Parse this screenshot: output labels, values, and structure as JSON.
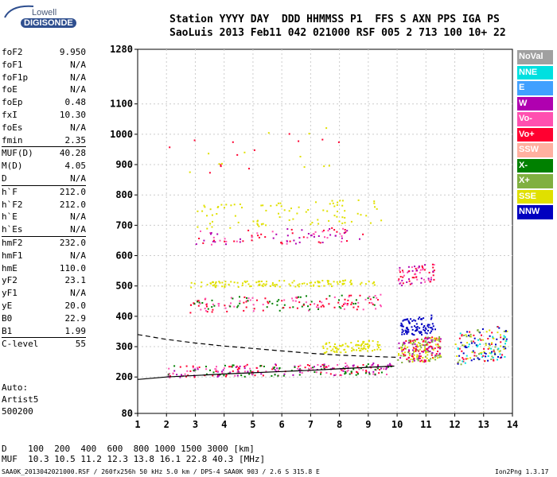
{
  "logo": {
    "line1": "Lowell",
    "line2": "DIGISONDE"
  },
  "header": {
    "line1": "Station YYYY DAY  DDD HHMMSS P1  FFS S AXN PPS IGA PS",
    "line2": "SaoLuis 2013 Feb11 042 021000 RSF 005 2 713 100 10+ 22"
  },
  "params": [
    {
      "label": "foF2",
      "value": "9.950"
    },
    {
      "label": "foF1",
      "value": "N/A"
    },
    {
      "label": "foF1p",
      "value": "N/A"
    },
    {
      "label": "foE",
      "value": "N/A"
    },
    {
      "label": "foEp",
      "value": "0.48"
    },
    {
      "label": "fxI",
      "value": "10.30"
    },
    {
      "label": "foEs",
      "value": "N/A"
    },
    {
      "label": "fmin",
      "value": "2.35"
    },
    {
      "label": "MUF(D)",
      "value": "40.28"
    },
    {
      "label": "M(D)",
      "value": "4.05"
    },
    {
      "label": "D",
      "value": "N/A"
    },
    {
      "label": "h`F",
      "value": "212.0"
    },
    {
      "label": "h`F2",
      "value": "212.0"
    },
    {
      "label": "h`E",
      "value": "N/A"
    },
    {
      "label": "h`Es",
      "value": "N/A"
    },
    {
      "label": "hmF2",
      "value": "232.0"
    },
    {
      "label": "hmF1",
      "value": "N/A"
    },
    {
      "label": "hmE",
      "value": "110.0"
    },
    {
      "label": "yF2",
      "value": "23.1"
    },
    {
      "label": "yF1",
      "value": "N/A"
    },
    {
      "label": "yE",
      "value": "20.0"
    },
    {
      "label": "B0",
      "value": "22.9"
    },
    {
      "label": "B1",
      "value": "1.99"
    },
    {
      "label": "C-level",
      "value": "55"
    }
  ],
  "auto": {
    "line1": "Auto:",
    "line2": "Artist5",
    "line3": "500200"
  },
  "footer": {
    "line1": "D    100  200  400  600  800 1000 1500 3000 [km]",
    "line2": "MUF  10.3 10.5 11.2 12.3 13.8 16.1 22.8 40.3 [MHz]",
    "line3": "SAA0K_2013042021000.RSF / 260fx256h 50 kHz 5.0 km / DPS-4 SAA0K 903 / 2.6 S 315.8 E",
    "version": "Ion2Png 1.3.17"
  },
  "legend": [
    {
      "label": "NoVal",
      "color": "#a0a0a0"
    },
    {
      "label": "NNE",
      "color": "#00e0e0"
    },
    {
      "label": "E",
      "color": "#40a0ff"
    },
    {
      "label": "W",
      "color": "#b000b0"
    },
    {
      "label": "Vo-",
      "color": "#ff50b0"
    },
    {
      "label": "Vo+",
      "color": "#ff0030"
    },
    {
      "label": "SSW",
      "color": "#ffb0a0"
    },
    {
      "label": "X-",
      "color": "#008000"
    },
    {
      "label": "X+",
      "color": "#80b040"
    },
    {
      "label": "SSE",
      "color": "#e0e000"
    },
    {
      "label": "NNW",
      "color": "#0000c0"
    }
  ],
  "chart_data": {
    "type": "scatter",
    "xlim": [
      1,
      14
    ],
    "ylim": [
      80,
      1280
    ],
    "x_ticks": [
      "1",
      "2",
      "3",
      "4",
      "5",
      "6",
      "7",
      "8",
      "9",
      "10",
      "11",
      "12",
      "13",
      "14"
    ],
    "y_ticks": [
      "80",
      "200",
      "300",
      "400",
      "500",
      "600",
      "700",
      "800",
      "900",
      "1000",
      "1100",
      "1280"
    ],
    "traces": [
      {
        "name": "F-trace",
        "points": [
          [
            1.0,
            192
          ],
          [
            2.0,
            200
          ],
          [
            3.0,
            205
          ],
          [
            4.0,
            210
          ],
          [
            5.0,
            214
          ],
          [
            6.0,
            218
          ],
          [
            7.0,
            222
          ],
          [
            8.0,
            227
          ],
          [
            9.0,
            232
          ],
          [
            9.9,
            236
          ]
        ]
      },
      {
        "name": "profile",
        "points": [
          [
            1.0,
            340
          ],
          [
            2.0,
            324
          ],
          [
            3.0,
            312
          ],
          [
            4.0,
            302
          ],
          [
            5.0,
            294
          ],
          [
            6.0,
            286
          ],
          [
            7.0,
            278
          ],
          [
            8.0,
            272
          ],
          [
            9.0,
            268
          ],
          [
            9.95,
            265
          ]
        ]
      }
    ],
    "clusters": [
      {
        "x": [
          2.0,
          9.8
        ],
        "y": [
          205,
          245
        ],
        "colors": [
          "#ff0030",
          "#ff50b0",
          "#008000",
          "#b000b0"
        ],
        "n": 260
      },
      {
        "x": [
          2.8,
          9.6
        ],
        "y": [
          420,
          470
        ],
        "colors": [
          "#ff0030",
          "#ff50b0",
          "#008000"
        ],
        "n": 160
      },
      {
        "x": [
          2.8,
          9.2
        ],
        "y": [
          500,
          520
        ],
        "colors": [
          "#e0e000"
        ],
        "n": 120
      },
      {
        "x": [
          10.0,
          11.3
        ],
        "y": [
          510,
          570
        ],
        "colors": [
          "#ff0030",
          "#ff50b0",
          "#b000b0"
        ],
        "n": 70
      },
      {
        "x": [
          3.0,
          8.8
        ],
        "y": [
          640,
          690
        ],
        "colors": [
          "#ff0030",
          "#b000b0",
          "#ff50b0"
        ],
        "n": 90
      },
      {
        "x": [
          3.0,
          9.5
        ],
        "y": [
          700,
          780
        ],
        "colors": [
          "#e0e000"
        ],
        "n": 90
      },
      {
        "x": [
          10.0,
          11.5
        ],
        "y": [
          250,
          330
        ],
        "colors": [
          "#ff0030",
          "#e0e000",
          "#80b040",
          "#b000b0"
        ],
        "n": 220
      },
      {
        "x": [
          10.1,
          11.3
        ],
        "y": [
          340,
          400
        ],
        "colors": [
          "#0000c0"
        ],
        "n": 90
      },
      {
        "x": [
          12.0,
          13.8
        ],
        "y": [
          250,
          360
        ],
        "colors": [
          "#80b040",
          "#ff0030",
          "#00e0e0",
          "#e0e000",
          "#0000c0"
        ],
        "n": 160
      },
      {
        "x": [
          7.4,
          9.4
        ],
        "y": [
          285,
          320
        ],
        "colors": [
          "#e0e000"
        ],
        "n": 80
      },
      {
        "x": [
          2.0,
          8.0
        ],
        "y": [
          880,
          1020
        ],
        "colors": [
          "#e0e000",
          "#ff0030"
        ],
        "n": 25
      }
    ]
  }
}
